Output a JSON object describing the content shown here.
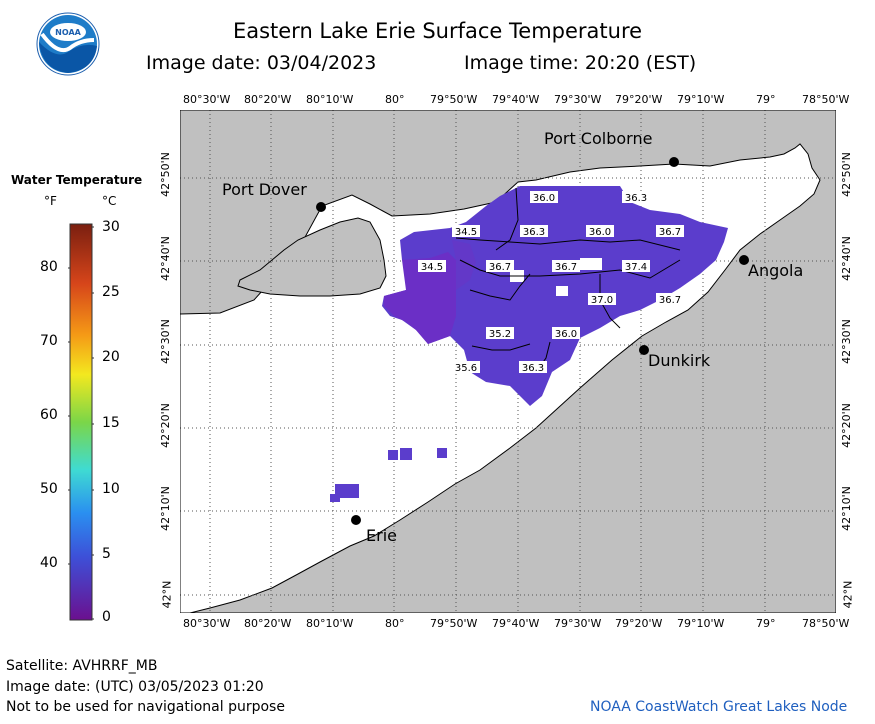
{
  "title": "Eastern Lake Erie Surface Temperature",
  "image_date_label": "Image date: 03/04/2023",
  "image_time_label": "Image time: 20:20 (EST)",
  "logo_text": "NOAA",
  "longitudes": [
    "80°30'W",
    "80°20'W",
    "80°10'W",
    "80°",
    "79°50'W",
    "79°40'W",
    "79°30'W",
    "79°20'W",
    "79°10'W",
    "79°",
    "78°50'W"
  ],
  "latitudes": [
    "42°50'N",
    "42°40'N",
    "42°30'N",
    "42°20'N",
    "42°10'N",
    "42°N"
  ],
  "cities": {
    "port_colborne": "Port Colborne",
    "port_dover": "Port Dover",
    "angola": "Angola",
    "dunkirk": "Dunkirk",
    "erie": "Erie"
  },
  "temperature_labels": [
    "36.0",
    "36.3",
    "34.5",
    "36.3",
    "36.0",
    "36.7",
    "34.5",
    "36.7",
    "36.7",
    "37.4",
    "37.0",
    "36.7",
    "35.2",
    "36.0",
    "35.6",
    "36.3"
  ],
  "legend": {
    "title": "Water Temperature",
    "unit_f": "°F",
    "unit_c": "°C",
    "f_ticks": [
      "80",
      "70",
      "60",
      "50",
      "40"
    ],
    "c_ticks": [
      "30",
      "25",
      "20",
      "15",
      "10",
      "5",
      "0"
    ]
  },
  "footer": {
    "satellite": "Satellite: AVHRRF_MB",
    "utc_date": "Image date: (UTC) 03/05/2023  01:20",
    "disclaimer": "Not to be used for navigational purpose",
    "credit": "NOAA CoastWatch Great Lakes Node"
  },
  "colors": {
    "land": "#c0c0c0",
    "water": "#ffffff",
    "sst_blue": "#5a3fcf",
    "sst_purple": "#6b2fc6"
  }
}
